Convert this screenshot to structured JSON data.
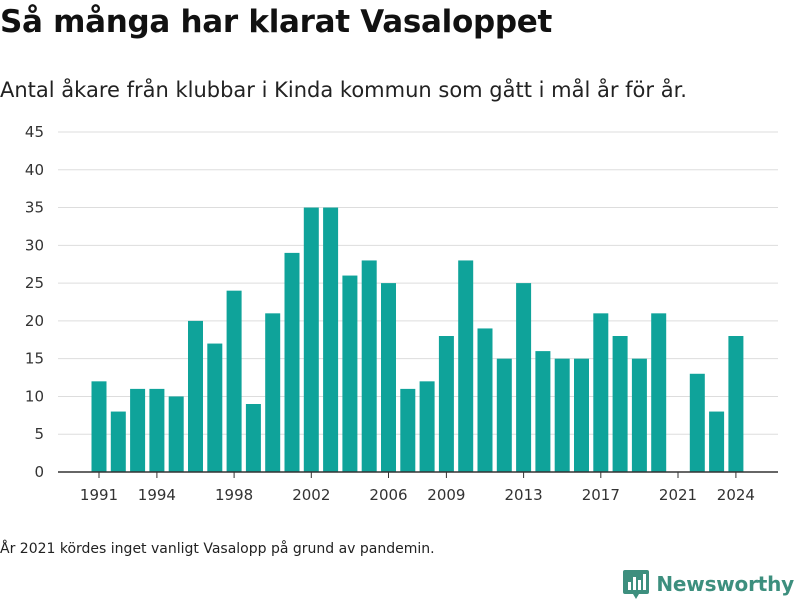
{
  "header": {
    "title": "Så många har klarat Vasaloppet",
    "subtitle": "Antal åkare från klubbar i Kinda kommun som gått i mål år för år."
  },
  "footnote": "År 2021 kördes inget vanligt Vasalopp på grund av pandemin.",
  "brand": {
    "name": "Newsworthy",
    "icon": "bar-chart-pin-icon",
    "color": "#3d8f7e"
  },
  "colors": {
    "bar": "#0fa39a",
    "grid": "#dddddd",
    "axis": "#333333"
  },
  "chart_data": {
    "type": "bar",
    "title": "Så många har klarat Vasaloppet",
    "subtitle": "Antal åkare från klubbar i Kinda kommun som gått i mål år för år.",
    "xlabel": "",
    "ylabel": "",
    "ylim": [
      0,
      45
    ],
    "yticks": [
      0,
      5,
      10,
      15,
      20,
      25,
      30,
      35,
      40,
      45
    ],
    "xticks": [
      "1991",
      "1994",
      "1998",
      "2002",
      "2006",
      "2009",
      "2013",
      "2017",
      "2021",
      "2024"
    ],
    "grid": true,
    "categories": [
      "1991",
      "1992",
      "1993",
      "1994",
      "1995",
      "1996",
      "1997",
      "1998",
      "1999",
      "2000",
      "2001",
      "2002",
      "2003",
      "2004",
      "2005",
      "2006",
      "2007",
      "2008",
      "2009",
      "2010",
      "2011",
      "2012",
      "2013",
      "2014",
      "2015",
      "2016",
      "2017",
      "2018",
      "2019",
      "2020",
      "2021",
      "2022",
      "2023",
      "2024"
    ],
    "values": [
      12,
      8,
      11,
      11,
      10,
      20,
      17,
      24,
      9,
      21,
      29,
      35,
      35,
      26,
      28,
      25,
      11,
      12,
      18,
      28,
      19,
      15,
      25,
      16,
      15,
      15,
      21,
      18,
      15,
      21,
      null,
      13,
      8,
      18
    ]
  }
}
